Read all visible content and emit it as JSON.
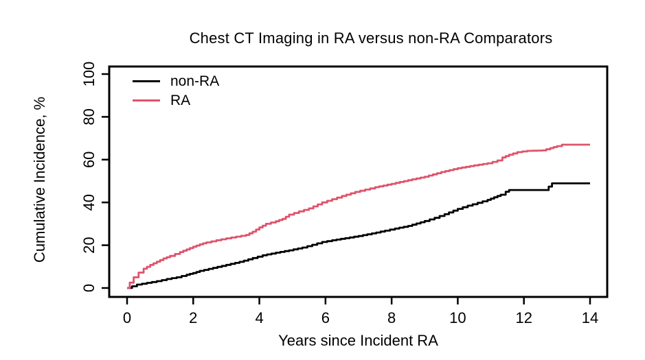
{
  "figure": {
    "background": "#ffffff",
    "axis_color": "#000000",
    "text_color": "#000000"
  },
  "chart_data": {
    "type": "line",
    "step": true,
    "title": "Chest CT Imaging in RA versus non-RA Comparators",
    "xlabel": "Years since Incident RA",
    "ylabel": "Cumulative Incidence, %",
    "xlim": [
      0,
      14
    ],
    "ylim": [
      0,
      100
    ],
    "xticks": [
      0,
      2,
      4,
      6,
      8,
      10,
      12,
      14
    ],
    "yticks": [
      0,
      20,
      40,
      60,
      80,
      100
    ],
    "ytick_labels_rotated": true,
    "grid": false,
    "legend_position": "inside top-left",
    "series": [
      {
        "name": "non-RA",
        "color": "#000000",
        "points": [
          [
            0,
            0
          ],
          [
            0.15,
            0.8
          ],
          [
            0.3,
            1.6
          ],
          [
            0.6,
            2.4
          ],
          [
            0.9,
            3.2
          ],
          [
            1.2,
            4.2
          ],
          [
            1.5,
            5.0
          ],
          [
            1.8,
            6.2
          ],
          [
            2.0,
            7.0
          ],
          [
            2.2,
            8.0
          ],
          [
            2.6,
            9.4
          ],
          [
            3.0,
            10.8
          ],
          [
            3.4,
            12.2
          ],
          [
            3.8,
            14.0
          ],
          [
            4.1,
            15.3
          ],
          [
            4.5,
            16.5
          ],
          [
            4.9,
            17.6
          ],
          [
            5.3,
            18.9
          ],
          [
            5.6,
            20.2
          ],
          [
            5.9,
            21.5
          ],
          [
            6.2,
            22.3
          ],
          [
            6.6,
            23.3
          ],
          [
            7.0,
            24.3
          ],
          [
            7.4,
            25.5
          ],
          [
            7.8,
            26.8
          ],
          [
            8.1,
            27.8
          ],
          [
            8.5,
            29.0
          ],
          [
            9.0,
            31.3
          ],
          [
            9.3,
            32.8
          ],
          [
            9.6,
            34.5
          ],
          [
            10.0,
            37.0
          ],
          [
            10.3,
            38.5
          ],
          [
            10.6,
            39.8
          ],
          [
            10.9,
            41.2
          ],
          [
            11.1,
            42.4
          ],
          [
            11.3,
            43.6
          ],
          [
            11.45,
            45.0
          ],
          [
            11.55,
            45.8
          ],
          [
            12.65,
            45.8
          ],
          [
            12.75,
            47.4
          ],
          [
            12.85,
            48.9
          ],
          [
            14,
            48.9
          ]
        ]
      },
      {
        "name": "RA",
        "color": "#DF536B",
        "points": [
          [
            0,
            0
          ],
          [
            0.08,
            2.5
          ],
          [
            0.2,
            5.0
          ],
          [
            0.35,
            7.2
          ],
          [
            0.5,
            9.0
          ],
          [
            0.7,
            10.8
          ],
          [
            0.9,
            12.3
          ],
          [
            1.1,
            13.8
          ],
          [
            1.3,
            15.0
          ],
          [
            1.6,
            16.8
          ],
          [
            1.8,
            18.0
          ],
          [
            2.0,
            19.3
          ],
          [
            2.2,
            20.4
          ],
          [
            2.4,
            21.3
          ],
          [
            2.7,
            22.3
          ],
          [
            3.0,
            23.2
          ],
          [
            3.3,
            24.0
          ],
          [
            3.6,
            24.8
          ],
          [
            3.8,
            26.3
          ],
          [
            4.0,
            28.3
          ],
          [
            4.2,
            30.0
          ],
          [
            4.5,
            31.2
          ],
          [
            4.7,
            32.3
          ],
          [
            4.9,
            34.3
          ],
          [
            5.2,
            35.8
          ],
          [
            5.5,
            37.2
          ],
          [
            5.9,
            40.0
          ],
          [
            6.2,
            41.5
          ],
          [
            6.5,
            43.0
          ],
          [
            6.9,
            44.9
          ],
          [
            7.2,
            46.0
          ],
          [
            7.5,
            47.1
          ],
          [
            8.0,
            48.7
          ],
          [
            8.5,
            50.4
          ],
          [
            9.0,
            52.0
          ],
          [
            9.5,
            54.2
          ],
          [
            10.0,
            56.0
          ],
          [
            10.5,
            57.3
          ],
          [
            10.9,
            58.3
          ],
          [
            11.2,
            59.6
          ],
          [
            11.35,
            61.0
          ],
          [
            11.55,
            62.3
          ],
          [
            11.8,
            63.5
          ],
          [
            12.1,
            64.1
          ],
          [
            12.55,
            64.3
          ],
          [
            12.8,
            65.4
          ],
          [
            13.0,
            66.3
          ],
          [
            13.15,
            67.0
          ],
          [
            14,
            67.0
          ]
        ]
      }
    ]
  }
}
